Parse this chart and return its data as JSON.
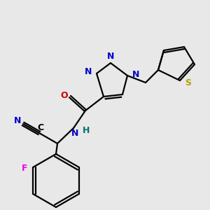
{
  "bg_color": "#e8e8e8",
  "colors": {
    "bond": "#000000",
    "N": "#0000cc",
    "O": "#cc0000",
    "S": "#b8a000",
    "F": "#ee00ee",
    "C": "#000000",
    "H": "#007070",
    "CN_color": "#0000cc"
  },
  "lw": 1.6
}
